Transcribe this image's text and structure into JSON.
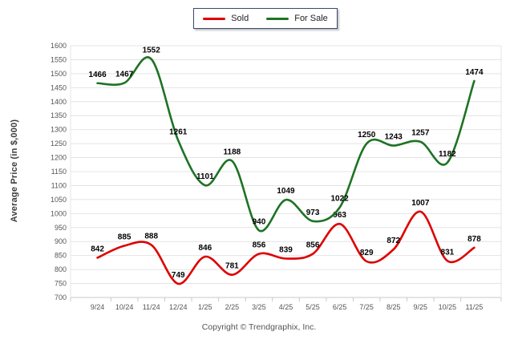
{
  "chart_data": {
    "type": "line",
    "curve": "smooth",
    "categories": [
      "9/24",
      "10/24",
      "11/24",
      "12/24",
      "1/25",
      "2/25",
      "3/25",
      "4/25",
      "5/25",
      "6/25",
      "7/25",
      "8/25",
      "9/25",
      "10/25",
      "11/25"
    ],
    "series": [
      {
        "name": "Sold",
        "color": "#dd0000",
        "values": [
          842,
          885,
          888,
          749,
          846,
          781,
          856,
          839,
          856,
          963,
          829,
          872,
          1007,
          831,
          878
        ]
      },
      {
        "name": "For Sale",
        "color": "#1d7324",
        "values": [
          1466,
          1467,
          1552,
          1261,
          1101,
          1188,
          940,
          1049,
          973,
          1022,
          1250,
          1243,
          1257,
          1182,
          1474
        ]
      }
    ],
    "title": "",
    "xlabel": "",
    "ylabel": "Average Price (in $,000)",
    "ylim": [
      700,
      1600
    ],
    "ytick_step": 50,
    "grid": "horizontal",
    "legend_position": "top-center",
    "data_labels": true
  },
  "footer": {
    "copyright": "Copyright © Trendgraphix, Inc."
  },
  "style_colors": {
    "grid_line": "#e4e4e4",
    "axis_line": "#c9c9c9",
    "tick_label": "#555555",
    "data_label": "#000000"
  }
}
